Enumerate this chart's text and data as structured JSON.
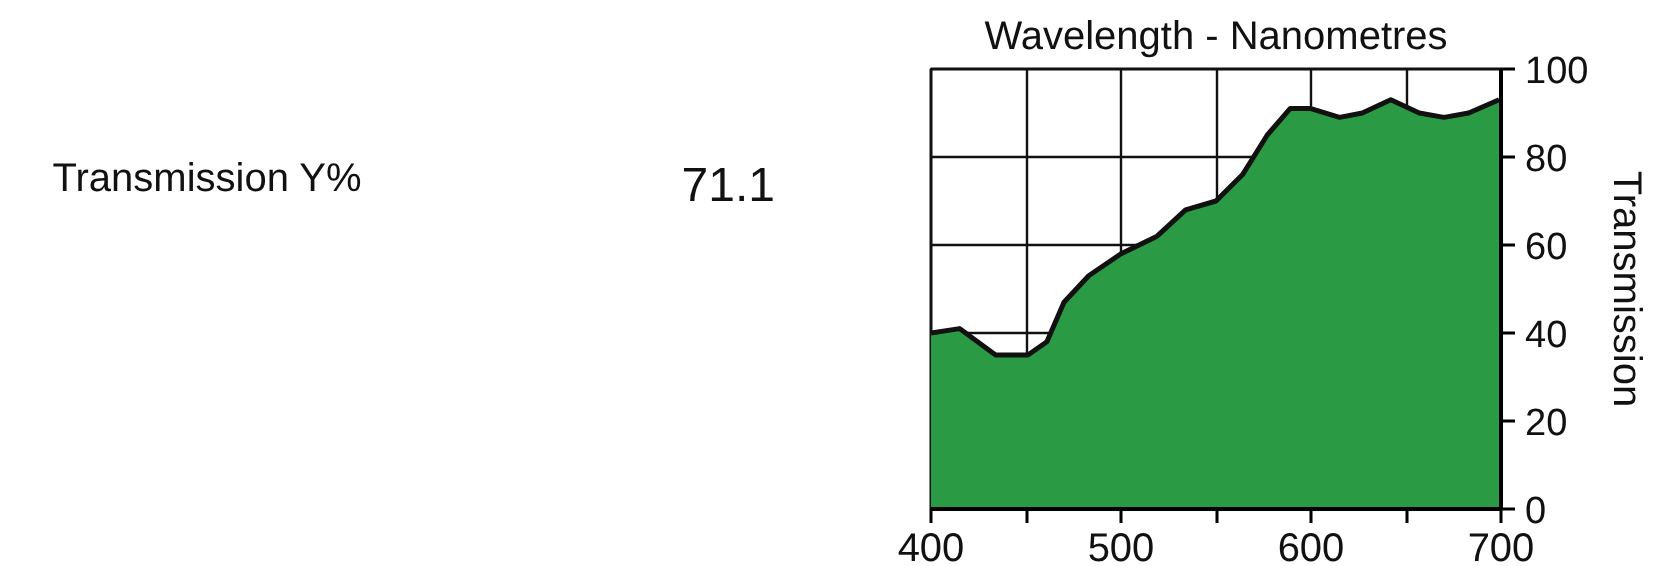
{
  "chart_data": [
    {
      "type": "other",
      "annotations": [
        "Transmission Y%",
        "71.1"
      ]
    },
    {
      "type": "area",
      "title": "Wavelength - Nanometres",
      "ylabel": "Transmission",
      "x": [
        400,
        415,
        434,
        451,
        461,
        470,
        483,
        500,
        519,
        534,
        550,
        564,
        577,
        589,
        600,
        615,
        627,
        642,
        657,
        670,
        683,
        699
      ],
      "series": [
        {
          "color": "#2a9a45",
          "values": [
            40,
            41,
            35,
            35,
            38,
            47,
            53,
            58,
            62,
            68,
            70,
            76,
            85,
            91,
            91,
            89,
            90,
            93,
            90,
            89,
            90,
            93
          ]
        }
      ],
      "xlim": [
        400,
        700
      ],
      "ylim": [
        0,
        100
      ],
      "xticks": [
        400,
        {
          "value": 450,
          "label": null
        },
        500,
        {
          "value": 550,
          "label": null
        },
        600,
        {
          "value": 650,
          "label": null
        },
        700
      ],
      "yticks": [
        0,
        20,
        40,
        60,
        80,
        100
      ],
      "grid": true
    }
  ]
}
